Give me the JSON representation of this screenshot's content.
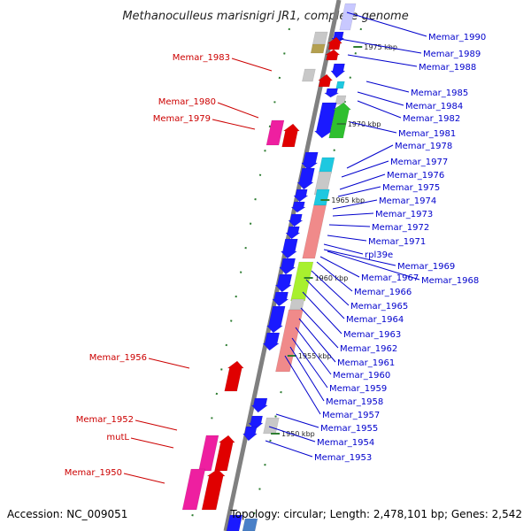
{
  "map": {
    "title": "Methanoculleus marisnigri JR1, complete genome",
    "accession": "Accession: NC_009051",
    "topology": "Topology: circular; Length: 2,478,101 bp; Genes: 2,542"
  },
  "kbp_labels": [
    "1975 kbp",
    "1970 kbp",
    "1965 kbp",
    "1960 kbp",
    "1955 kbp",
    "1950 kbp"
  ],
  "red_labels": [
    "Memar_1983",
    "Memar_1980",
    "Memar_1979",
    "Memar_1956",
    "Memar_1952",
    "mutL",
    "Memar_1950"
  ],
  "blue_labels": [
    "Memar_1990",
    "Memar_1989",
    "Memar_1988",
    "Memar_1985",
    "Memar_1984",
    "Memar_1982",
    "Memar_1981",
    "Memar_1978",
    "Memar_1977",
    "Memar_1976",
    "Memar_1975",
    "Memar_1974",
    "Memar_1973",
    "Memar_1972",
    "Memar_1971",
    "rpl39e",
    "Memar_1969",
    "Memar_1967",
    "Memar_1968",
    "Memar_1966",
    "Memar_1965",
    "Memar_1964",
    "Memar_1963",
    "Memar_1962",
    "Memar_1961",
    "Memar_1960",
    "Memar_1959",
    "Memar_1958",
    "Memar_1957",
    "Memar_1955",
    "Memar_1954",
    "Memar_1953"
  ],
  "colors": {
    "forward_gene": "#e00000",
    "reverse_gene": "#1a1aff",
    "pink_gene": "#ee1fa0",
    "salmon_gene": "#f08a8a",
    "lime_gene": "#a8f02e",
    "green_gene": "#2fbf2f",
    "cyan_gene": "#1ec8e0",
    "gray_gene": "#c8c8c8",
    "lavender_gene": "#c8c8ff",
    "olive_gene": "#b4a050",
    "red_label": "#cc0000",
    "blue_label": "#0000cc",
    "backbone": "#808080"
  }
}
